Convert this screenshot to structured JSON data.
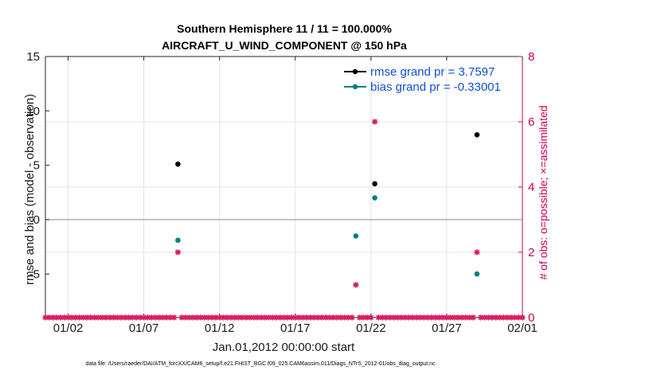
{
  "chart_data": {
    "type": "scatter",
    "title_line1": "Southern Hemisphere 11 / 11 = 100.000%",
    "title_line2": "AIRCRAFT_U_WIND_COMPONENT @ 150 hPa",
    "xlabel": "Jan.01,2012 00:00:00 start",
    "ylabel_left": "rmse and bias (model - observation)",
    "ylabel_right": "# of obs: o=possible; ×=assimilated",
    "footer": "data file: /Users/raeder/DAI/ATM_forcXX/CAM6_setup/f.e21.FHIST_BGC.f09_025.CAM6assim.011/Diags_NTrS_2012-01/obs_diag_output.nc",
    "xlim": [
      0.5,
      32.0
    ],
    "ylim_left": [
      -9,
      15
    ],
    "ylim_right": [
      0,
      8
    ],
    "x_ticks": [
      {
        "value": 2,
        "label": "01/02"
      },
      {
        "value": 7,
        "label": "01/07"
      },
      {
        "value": 12,
        "label": "01/12"
      },
      {
        "value": 17,
        "label": "01/17"
      },
      {
        "value": 22,
        "label": "01/22"
      },
      {
        "value": 27,
        "label": "01/27"
      },
      {
        "value": 32,
        "label": "02/01"
      }
    ],
    "y_ticks_left": [
      "15",
      "10",
      "5",
      "0",
      "-5"
    ],
    "y_tick_values_left": [
      15,
      10,
      5,
      0,
      -5
    ],
    "y_ticks_right": [
      "8",
      "6",
      "4",
      "2",
      "0"
    ],
    "y_tick_values_right": [
      8,
      6,
      4,
      2,
      0
    ],
    "zero_line": 0,
    "series": [
      {
        "name": "rmse",
        "legend": "rmse grand pr = 3.7597",
        "color": "#000000",
        "points": [
          [
            9.25,
            5.1
          ],
          [
            22.25,
            3.3
          ],
          [
            29.0,
            7.8
          ]
        ]
      },
      {
        "name": "bias",
        "legend": "bias grand pr = -0.33001",
        "color": "#008080",
        "points": [
          [
            9.25,
            -1.9
          ],
          [
            21.0,
            -1.5
          ],
          [
            22.25,
            2.0
          ],
          [
            29.0,
            -5.0
          ]
        ]
      }
    ],
    "obs_series": {
      "name": "# of obs",
      "color": "#d81b60",
      "start": 0.5,
      "step": 0.25,
      "end": 32.0,
      "nonzero": [
        [
          9.25,
          2
        ],
        [
          21.0,
          1
        ],
        [
          22.25,
          6
        ],
        [
          29.0,
          2
        ]
      ]
    }
  }
}
